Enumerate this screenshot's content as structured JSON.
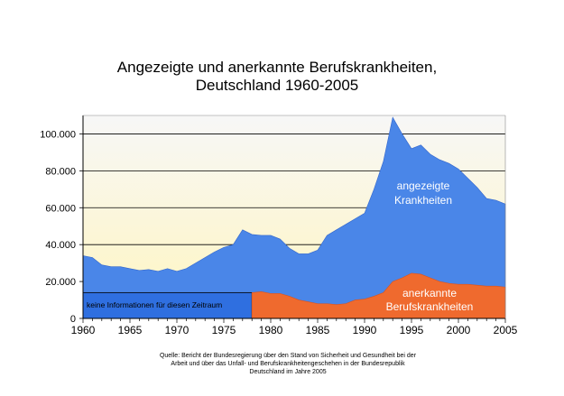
{
  "chart_data": {
    "type": "area",
    "title_lines": [
      "Angezeigte und anerkannte Berufskrankheiten,",
      "Deutschland 1960-2005"
    ],
    "xlabel": "",
    "ylabel": "",
    "xlim": [
      1960,
      2005
    ],
    "ylim": [
      0,
      110000
    ],
    "x_ticks": [
      "1960",
      "1965",
      "1970",
      "1975",
      "1980",
      "1985",
      "1990",
      "1995",
      "2000",
      "2005"
    ],
    "y_ticks": [
      "0",
      "20.000",
      "40.000",
      "60.000",
      "80.000",
      "100.000"
    ],
    "grid": true,
    "annotations": {
      "angezeigt_line1": "angezeigte",
      "angezeigt_line2": "Krankheiten",
      "anerkannt_line1": "anerkannte",
      "anerkannt_line2": "Berufskrankheiten",
      "no_data": "keine Informationen für diesen Zeitraum"
    },
    "no_data_range": [
      1960,
      1978
    ],
    "colors": {
      "angezeigt": "#4a86e8",
      "anerkannt": "#ef6a2e",
      "no_data_fill": "#2f6fe0",
      "bg_top": "#f7f7f7",
      "bg_bottom": "#fff9c9"
    },
    "series": [
      {
        "key": "angezeigt",
        "x": [
          1960,
          1961,
          1962,
          1963,
          1964,
          1965,
          1966,
          1967,
          1968,
          1969,
          1970,
          1971,
          1972,
          1973,
          1974,
          1975,
          1976,
          1977,
          1978,
          1979,
          1980,
          1981,
          1982,
          1983,
          1984,
          1985,
          1986,
          1987,
          1988,
          1989,
          1990,
          1991,
          1992,
          1993,
          1994,
          1995,
          1996,
          1997,
          1998,
          1999,
          2000,
          2001,
          2002,
          2003,
          2004,
          2005
        ],
        "values": [
          34000,
          33000,
          29000,
          28000,
          28000,
          27000,
          26000,
          26500,
          25500,
          27000,
          25500,
          27000,
          30000,
          33000,
          36000,
          38500,
          40000,
          48000,
          45500,
          45000,
          45000,
          43000,
          38000,
          35000,
          35000,
          37000,
          45000,
          48000,
          51000,
          54000,
          57000,
          70000,
          85000,
          109000,
          100000,
          92000,
          94000,
          89000,
          86000,
          84000,
          81000,
          76000,
          71000,
          65000,
          64000,
          62000
        ]
      },
      {
        "key": "anerkannt",
        "x": [
          1978,
          1979,
          1980,
          1981,
          1982,
          1983,
          1984,
          1985,
          1986,
          1987,
          1988,
          1989,
          1990,
          1991,
          1992,
          1993,
          1994,
          1995,
          1996,
          1997,
          1998,
          1999,
          2000,
          2001,
          2002,
          2003,
          2004,
          2005
        ],
        "values": [
          14000,
          14500,
          13500,
          13500,
          12000,
          10000,
          9000,
          8000,
          8000,
          7500,
          8000,
          10000,
          10500,
          12000,
          14000,
          20000,
          22000,
          24500,
          24000,
          22000,
          20000,
          19000,
          18500,
          18500,
          18000,
          17500,
          17500,
          17000
        ]
      }
    ],
    "source_lines": [
      "Quelle: Bericht der Bundesregierung über den Stand von Sicherheit und Gesundheit bei der",
      "Arbeit und über das Unfall- und Berufskrankheitengeschehen in der Bundesrepublik",
      "Deutschland im Jahre 2005"
    ]
  }
}
